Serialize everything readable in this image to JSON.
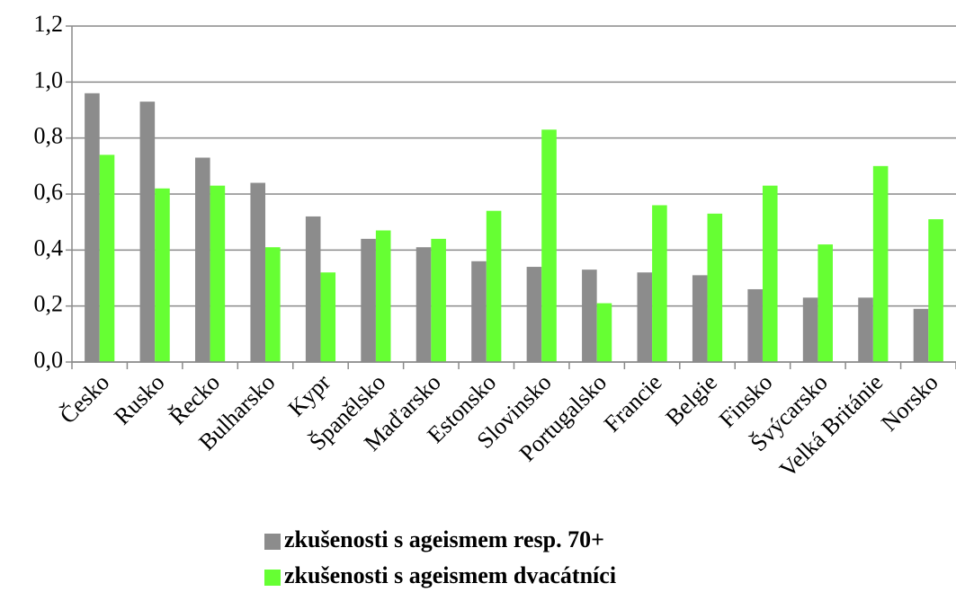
{
  "chart_data": {
    "type": "bar",
    "categories": [
      "Česko",
      "Rusko",
      "Řecko",
      "Bulharsko",
      "Kypr",
      "Španělsko",
      "Maďarsko",
      "Estonsko",
      "Slovinsko",
      "Portugalsko",
      "Francie",
      "Belgie",
      "Finsko",
      "Švýcarsko",
      "Velká Británie",
      "Norsko"
    ],
    "series": [
      {
        "name": "zkušenosti s ageismem resp. 70+",
        "color": "#8c8c8c",
        "values": [
          0.96,
          0.93,
          0.73,
          0.64,
          0.52,
          0.44,
          0.41,
          0.36,
          0.34,
          0.33,
          0.32,
          0.31,
          0.26,
          0.23,
          0.23,
          0.19
        ]
      },
      {
        "name": "zkušenosti s ageismem dvacátníci",
        "color": "#66ff33",
        "values": [
          0.74,
          0.62,
          0.63,
          0.41,
          0.32,
          0.47,
          0.44,
          0.54,
          0.83,
          0.21,
          0.56,
          0.53,
          0.63,
          0.42,
          0.7,
          0.51
        ]
      }
    ],
    "ylim": [
      0,
      1.2
    ],
    "yticks": [
      {
        "value": 0,
        "label": "0,0"
      },
      {
        "value": 0.2,
        "label": "0,2"
      },
      {
        "value": 0.4,
        "label": "0,4"
      },
      {
        "value": 0.6,
        "label": "0,6"
      },
      {
        "value": 0.8,
        "label": "0,8"
      },
      {
        "value": 1.0,
        "label": "1,0"
      },
      {
        "value": 1.2,
        "label": "1,2"
      }
    ],
    "grid": true,
    "legend": "bottom"
  }
}
